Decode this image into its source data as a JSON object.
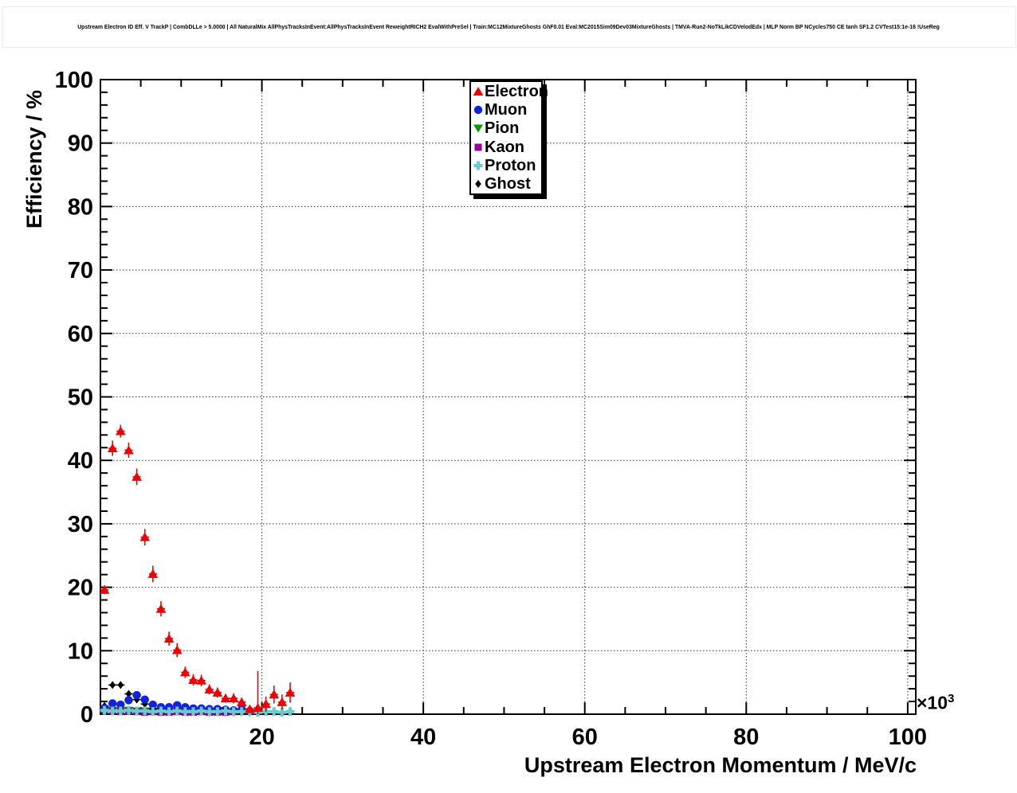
{
  "chart_data": {
    "type": "scatter",
    "title": "Upstream Electron ID Eff. V TrackP | CombDLLe > 5.0000 | All NaturalMix AllPhysTracksInEvent:AllPhysTracksInEvent ReweightRICH2 EvalWithPreSel | Train:MC12MixtureGhosts GhF0.01 Eval:MC2015Sim09Dev03MixtureGhosts | TMVA-Run2-NoTkLikCDVelodEdx | MLP Norm BP NCycles750 CE tanh SF1.2 CVTest15:1e-16 !UseReg",
    "xlabel": "Upstream Electron Momentum / MeV/c",
    "ylabel": "Efficiency / %",
    "x_axis_power": {
      "base": "×10",
      "exp": "3"
    },
    "x_units_note": "x values in units of 10^3 MeV/c",
    "xlim": [
      0,
      101
    ],
    "ylim": [
      0,
      100
    ],
    "xticks": [
      20,
      40,
      60,
      80,
      100
    ],
    "yticks": [
      0,
      10,
      20,
      30,
      40,
      50,
      60,
      70,
      80,
      90,
      100
    ],
    "x_minor_step": 5,
    "y_minor_step": 2,
    "grid": true,
    "grid_style": "dotted",
    "legend_position": "top-center",
    "axis_color": "#000000",
    "background_color": "#ffffff",
    "series": [
      {
        "name": "Electron",
        "marker": "triangle-up",
        "color": "#ee0000",
        "x": [
          0.5,
          1.5,
          2.5,
          3.5,
          4.5,
          5.5,
          6.5,
          7.5,
          8.5,
          9.5,
          10.5,
          11.5,
          12.5,
          13.5,
          14.5,
          15.5,
          16.5,
          17.5,
          18.5,
          19.5,
          20.5,
          21.5,
          22.5,
          23.5
        ],
        "y": [
          19.6,
          41.9,
          44.6,
          41.6,
          37.4,
          27.9,
          22.1,
          16.6,
          11.9,
          10.1,
          6.6,
          5.4,
          5.3,
          3.9,
          3.4,
          2.5,
          2.5,
          1.9,
          0.8,
          1.0,
          1.6,
          3.1,
          1.9,
          3.4
        ],
        "ey": [
          0.7,
          1.2,
          1.0,
          1.2,
          1.3,
          1.3,
          1.3,
          1.2,
          1.1,
          1.1,
          0.9,
          0.9,
          0.9,
          0.8,
          0.8,
          0.7,
          0.8,
          0.7,
          0.5,
          5.8,
          1.2,
          1.4,
          1.2,
          1.6
        ]
      },
      {
        "name": "Muon",
        "marker": "circle",
        "color": "#1122dd",
        "x": [
          0.5,
          1.5,
          2.5,
          3.5,
          4.5,
          5.5,
          6.5,
          7.5,
          8.5,
          9.5,
          10.5,
          11.5,
          12.5,
          13.5,
          14.5,
          15.5,
          16.5,
          17.5,
          18.5
        ],
        "y": [
          0.9,
          1.7,
          1.5,
          2.2,
          3.0,
          2.3,
          1.5,
          1.1,
          1.1,
          1.4,
          1.1,
          0.9,
          0.9,
          0.8,
          0.8,
          0.7,
          0.6,
          0.6,
          0.5
        ],
        "ey": [
          0.3,
          0.4,
          0.4,
          0.5,
          0.5,
          0.5,
          0.4,
          0.3,
          0.3,
          0.4,
          0.3,
          0.3,
          0.3,
          0.3,
          0.3,
          0.3,
          0.2,
          0.3,
          0.2
        ]
      },
      {
        "name": "Pion",
        "marker": "triangle-down",
        "color": "#009900",
        "x": [
          0.5,
          1.5,
          2.5,
          3.5,
          4.5,
          5.5,
          6.5,
          7.5,
          8.5,
          9.5,
          10.5,
          11.5,
          12.5,
          13.5,
          14.5,
          15.5,
          16.5,
          17.5,
          18.5
        ],
        "y": [
          0.7,
          0.6,
          0.5,
          0.6,
          0.5,
          0.5,
          0.4,
          0.4,
          0.5,
          0.4,
          0.4,
          0.4,
          0.4,
          0.3,
          0.4,
          0.3,
          0.3,
          0.4,
          0.3
        ],
        "ey": [
          0.2,
          0.2,
          0.2,
          0.2,
          0.2,
          0.2,
          0.2,
          0.2,
          0.2,
          0.2,
          0.2,
          0.2,
          0.2,
          0.2,
          0.2,
          0.2,
          0.2,
          0.2,
          0.2
        ]
      },
      {
        "name": "Kaon",
        "marker": "square",
        "color": "#990099",
        "x": [
          0.5,
          1.5,
          2.5,
          3.5,
          4.5,
          5.5,
          6.5,
          7.5,
          8.5,
          9.5,
          10.5,
          11.5,
          12.5,
          13.5,
          14.5,
          15.5,
          16.5,
          17.5
        ],
        "y": [
          0.7,
          0.5,
          0.4,
          0.5,
          0.4,
          0.3,
          0.4,
          0.3,
          0.3,
          0.4,
          0.3,
          0.3,
          0.4,
          0.3,
          0.3,
          0.3,
          0.4,
          0.8
        ],
        "ey": [
          0.2,
          0.2,
          0.2,
          0.2,
          0.2,
          0.2,
          0.2,
          0.2,
          0.2,
          0.2,
          0.2,
          0.2,
          0.2,
          0.2,
          0.2,
          0.2,
          0.2,
          0.4
        ]
      },
      {
        "name": "Proton",
        "marker": "cross",
        "color": "#66cccc",
        "x": [
          0.5,
          1.5,
          2.5,
          3.5,
          4.5,
          5.5,
          6.5,
          7.5,
          8.5,
          9.5,
          10.5,
          11.5,
          12.5,
          13.5,
          14.5,
          15.5,
          16.5,
          17.5,
          18.5,
          19.5,
          20.5,
          21.5,
          22.5,
          23.5
        ],
        "y": [
          0.6,
          0.5,
          0.5,
          0.6,
          0.5,
          0.5,
          0.4,
          0.5,
          0.4,
          0.5,
          0.4,
          0.4,
          0.5,
          0.4,
          0.4,
          0.5,
          0.4,
          0.4,
          0.4,
          0.3,
          0.4,
          0.4,
          0.3,
          0.4
        ],
        "ey": [
          0.2,
          0.2,
          0.2,
          0.2,
          0.2,
          0.2,
          0.2,
          0.2,
          0.2,
          0.2,
          0.2,
          0.2,
          0.2,
          0.2,
          0.2,
          0.2,
          0.2,
          0.2,
          0.2,
          0.2,
          0.2,
          0.2,
          0.2,
          0.2
        ]
      },
      {
        "name": "Ghost",
        "marker": "diamond",
        "color": "#000000",
        "x": [
          0.5,
          1.5,
          2.5,
          3.5,
          4.5,
          5.5,
          6.5,
          7.5,
          8.5,
          9.5,
          10.5,
          11.5,
          12.5,
          13.5,
          14.5,
          15.5,
          16.5,
          17.5,
          18.5,
          20.5
        ],
        "y": [
          1.3,
          4.6,
          4.6,
          3.2,
          2.3,
          1.6,
          0.9,
          0.8,
          0.6,
          0.5,
          0.5,
          0.4,
          0.4,
          0.4,
          0.3,
          0.4,
          0.3,
          0.4,
          0.3,
          0.4
        ],
        "ey": [
          0.4,
          0.5,
          0.5,
          0.4,
          0.4,
          0.3,
          0.2,
          0.2,
          0.2,
          0.2,
          0.2,
          0.2,
          0.2,
          0.2,
          0.2,
          0.2,
          0.2,
          0.2,
          0.2,
          0.3
        ]
      }
    ]
  }
}
